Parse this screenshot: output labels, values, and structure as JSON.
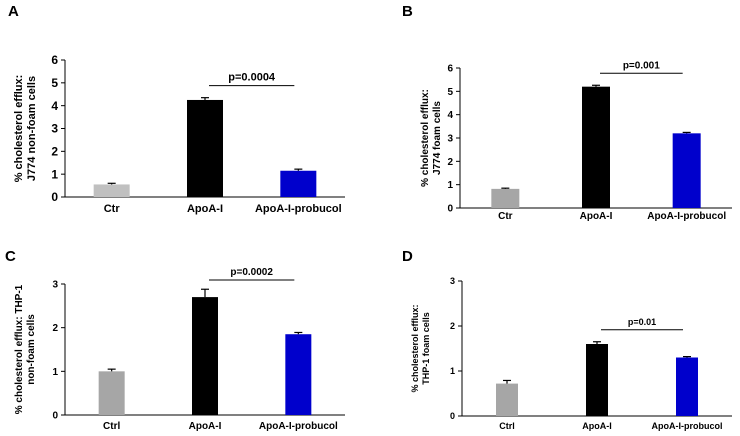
{
  "chart_data": [
    {
      "panel": "A",
      "type": "bar",
      "categories": [
        "Ctr",
        "ApoA-I",
        "ApoA-I-probucol"
      ],
      "values": [
        0.55,
        4.25,
        1.15
      ],
      "errors": [
        0.05,
        0.1,
        0.07
      ],
      "colors": [
        "#c0c0c0",
        "#000000",
        "#0000cc"
      ],
      "ylabel": [
        "% cholesterol efflux:",
        "J774 non-foam cells"
      ],
      "ylim": [
        0,
        6
      ],
      "yticks": [
        0,
        1,
        2,
        3,
        4,
        5,
        6
      ],
      "annotation": {
        "text": "p=0.0004",
        "from": 1,
        "to": 2
      }
    },
    {
      "panel": "B",
      "type": "bar",
      "categories": [
        "Ctr",
        "ApoA-I",
        "ApoA-I-probucol"
      ],
      "values": [
        0.82,
        5.2,
        3.2
      ],
      "errors": [
        0.03,
        0.06,
        0.04
      ],
      "colors": [
        "#a6a6a6",
        "#000000",
        "#0000cc"
      ],
      "ylabel": [
        "% cholesterol efflux:",
        "J774 foam cells"
      ],
      "ylim": [
        0,
        6
      ],
      "yticks": [
        0,
        1,
        2,
        3,
        4,
        5,
        6
      ],
      "annotation": {
        "text": "p=0.001",
        "from": 1,
        "to": 2
      }
    },
    {
      "panel": "C",
      "type": "bar",
      "categories": [
        "Ctrl",
        "ApoA-I",
        "ApoA-I-probucol"
      ],
      "values": [
        1.0,
        2.7,
        1.85
      ],
      "errors": [
        0.05,
        0.18,
        0.04
      ],
      "colors": [
        "#a6a6a6",
        "#000000",
        "#0000cc"
      ],
      "ylabel": [
        "% cholesterol efflux: THP-1",
        "non-foam cells"
      ],
      "ylim": [
        0,
        3
      ],
      "yticks": [
        0,
        1,
        2,
        3
      ],
      "annotation": {
        "text": "p=0.0002",
        "from": 1,
        "to": 2
      }
    },
    {
      "panel": "D",
      "type": "bar",
      "categories": [
        "Ctrl",
        "ApoA-I",
        "ApoA-I-probucol"
      ],
      "values": [
        0.72,
        1.6,
        1.3
      ],
      "errors": [
        0.07,
        0.05,
        0.02
      ],
      "colors": [
        "#a6a6a6",
        "#000000",
        "#0000cc"
      ],
      "ylabel": [
        "% cholesterol efflux:",
        "THP-1 foam cells"
      ],
      "ylim": [
        0,
        3
      ],
      "yticks": [
        0,
        1,
        2,
        3
      ],
      "annotation": {
        "text": "p=0.01",
        "from": 1,
        "to": 2
      }
    }
  ]
}
